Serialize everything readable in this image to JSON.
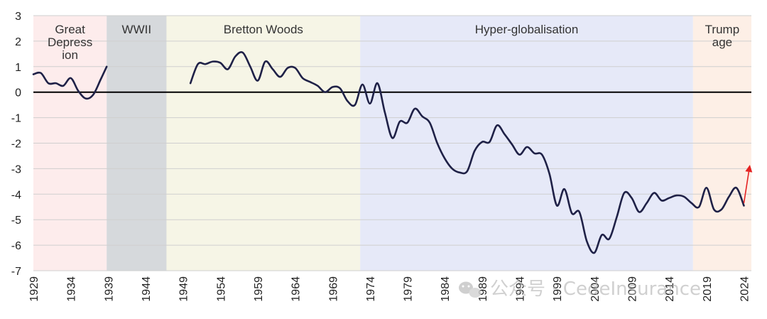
{
  "chart_data": {
    "type": "line",
    "title": "",
    "xlabel": "",
    "ylabel": "",
    "xlim": [
      1929,
      2025
    ],
    "ylim": [
      -7,
      3
    ],
    "yticks": [
      3,
      2,
      1,
      0,
      -1,
      -2,
      -3,
      -4,
      -5,
      -6,
      -7
    ],
    "xticks": [
      1929,
      1934,
      1939,
      1944,
      1949,
      1954,
      1959,
      1964,
      1969,
      1974,
      1979,
      1984,
      1989,
      1994,
      1999,
      2004,
      2009,
      2014,
      2019,
      2024
    ],
    "grid": true,
    "legend": "none",
    "line_color": "#1f2147",
    "zero_line_color": "#000000",
    "eras": [
      {
        "label": [
          "Great",
          "Depress",
          "ion"
        ],
        "start": 1929,
        "end": 1938.8,
        "color": "#fdecec"
      },
      {
        "label": [
          "WWII"
        ],
        "start": 1938.8,
        "end": 1946.8,
        "color": "#d6d9dc"
      },
      {
        "label": [
          "Bretton Woods"
        ],
        "start": 1946.8,
        "end": 1972.7,
        "color": "#f6f5e6"
      },
      {
        "label": [
          "Hyper-globalisation"
        ],
        "start": 1972.7,
        "end": 2017.2,
        "color": "#e6e9f8"
      },
      {
        "label": [
          "Trump",
          "age"
        ],
        "start": 2017.2,
        "end": 2025,
        "color": "#fdefe6"
      }
    ],
    "series": [
      {
        "segments": [
          [
            [
              1929,
              0.7
            ],
            [
              1930,
              0.75
            ],
            [
              1931,
              0.35
            ],
            [
              1932,
              0.35
            ],
            [
              1933,
              0.25
            ],
            [
              1934,
              0.55
            ],
            [
              1935,
              0.05
            ],
            [
              1936,
              -0.25
            ],
            [
              1937,
              -0.1
            ],
            [
              1938,
              0.5
            ],
            [
              1938.8,
              1.0
            ]
          ],
          [
            [
              1950,
              0.35
            ],
            [
              1951,
              1.1
            ],
            [
              1952,
              1.1
            ],
            [
              1953,
              1.2
            ],
            [
              1954,
              1.15
            ],
            [
              1955,
              0.9
            ],
            [
              1956,
              1.4
            ],
            [
              1957,
              1.55
            ],
            [
              1958,
              1.0
            ],
            [
              1959,
              0.45
            ],
            [
              1960,
              1.2
            ],
            [
              1961,
              0.9
            ],
            [
              1962,
              0.6
            ],
            [
              1963,
              0.95
            ],
            [
              1964,
              0.95
            ],
            [
              1965,
              0.55
            ],
            [
              1966,
              0.4
            ],
            [
              1967,
              0.25
            ],
            [
              1968,
              0.0
            ],
            [
              1969,
              0.2
            ],
            [
              1970,
              0.15
            ],
            [
              1971,
              -0.35
            ],
            [
              1972,
              -0.5
            ],
            [
              1973,
              0.3
            ],
            [
              1974,
              -0.45
            ],
            [
              1975,
              0.35
            ],
            [
              1976,
              -0.8
            ],
            [
              1977,
              -1.8
            ],
            [
              1978,
              -1.15
            ],
            [
              1979,
              -1.2
            ],
            [
              1980,
              -0.65
            ],
            [
              1981,
              -0.95
            ],
            [
              1982,
              -1.2
            ],
            [
              1983,
              -2.0
            ],
            [
              1984,
              -2.6
            ],
            [
              1985,
              -3.0
            ],
            [
              1986,
              -3.15
            ],
            [
              1987,
              -3.1
            ],
            [
              1988,
              -2.3
            ],
            [
              1989,
              -1.95
            ],
            [
              1990,
              -1.95
            ],
            [
              1991,
              -1.3
            ],
            [
              1992,
              -1.65
            ],
            [
              1993,
              -2.05
            ],
            [
              1994,
              -2.45
            ],
            [
              1995,
              -2.15
            ],
            [
              1996,
              -2.4
            ],
            [
              1997,
              -2.45
            ],
            [
              1998,
              -3.2
            ],
            [
              1999,
              -4.45
            ],
            [
              2000,
              -3.8
            ],
            [
              2001,
              -4.75
            ],
            [
              2002,
              -4.7
            ],
            [
              2003,
              -5.85
            ],
            [
              2004,
              -6.3
            ],
            [
              2005,
              -5.6
            ],
            [
              2006,
              -5.75
            ],
            [
              2007,
              -4.9
            ],
            [
              2008,
              -3.95
            ],
            [
              2009,
              -4.15
            ],
            [
              2010,
              -4.7
            ],
            [
              2011,
              -4.35
            ],
            [
              2012,
              -3.95
            ],
            [
              2013,
              -4.25
            ],
            [
              2014,
              -4.15
            ],
            [
              2015,
              -4.05
            ],
            [
              2016,
              -4.1
            ],
            [
              2017,
              -4.35
            ],
            [
              2018,
              -4.5
            ],
            [
              2019,
              -3.75
            ],
            [
              2020,
              -4.6
            ],
            [
              2021,
              -4.6
            ],
            [
              2022,
              -4.1
            ],
            [
              2023,
              -3.75
            ],
            [
              2024,
              -4.45
            ]
          ]
        ]
      }
    ],
    "annotation_arrow": {
      "from": [
        2024,
        -4.35
      ],
      "to": [
        2024.8,
        -2.85
      ],
      "color": "#e52222"
    }
  },
  "watermark": {
    "icon": "wechat-icon",
    "text": "公众号 · CedeInsurance"
  }
}
